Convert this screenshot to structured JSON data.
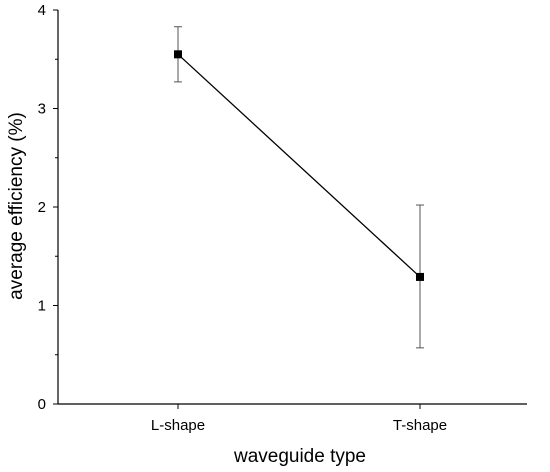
{
  "chart_data": {
    "type": "line",
    "title": "",
    "xlabel": "waveguide type",
    "ylabel": "average efficiency (%)",
    "categories": [
      "L-shape",
      "T-shape"
    ],
    "series": [
      {
        "values": [
          3.55,
          1.29
        ],
        "err_low": [
          3.27,
          0.57
        ],
        "err_high": [
          3.83,
          2.02
        ],
        "marker": "square",
        "color": "#000000"
      }
    ],
    "ylim": [
      0,
      4
    ],
    "yticks": [
      "0",
      "1",
      "2",
      "3",
      "4"
    ],
    "grid": false,
    "legend": "none"
  }
}
